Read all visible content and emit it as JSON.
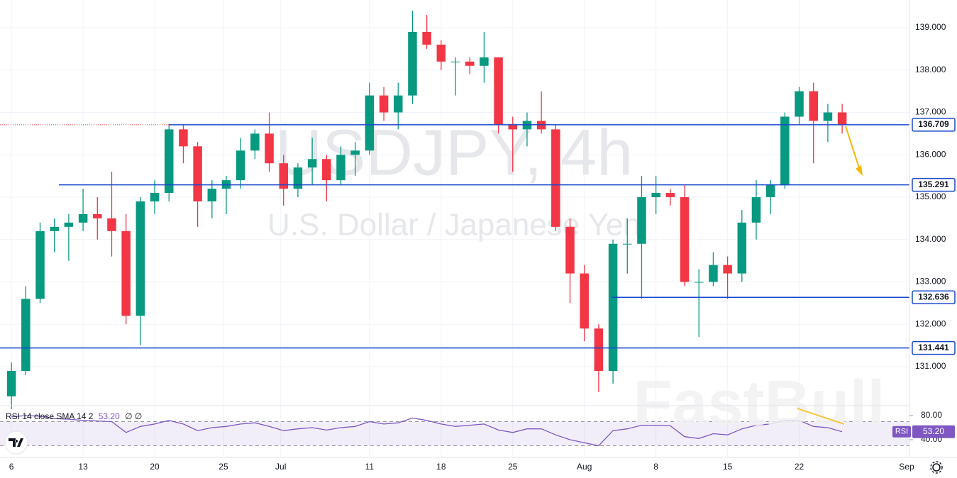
{
  "chart_data": {
    "type": "candlestick",
    "watermark_title": "USDJPY, 4h",
    "watermark_subtitle": "U.S. Dollar / Japanese Yen",
    "watermark_brand": "FastBull",
    "x": [
      0,
      1,
      2,
      3,
      4,
      5,
      6,
      7,
      8,
      9,
      10,
      11,
      12,
      13,
      14,
      15,
      16,
      17,
      18,
      19,
      20,
      21,
      22,
      23,
      24,
      25,
      26,
      27,
      28,
      29,
      30,
      31,
      32,
      33,
      34,
      35,
      36,
      37,
      38,
      39,
      40,
      41,
      42,
      43,
      44,
      45,
      46,
      47,
      48,
      49,
      50,
      51,
      52,
      53,
      54,
      55,
      56,
      57,
      58
    ],
    "open": [
      130.3,
      130.9,
      132.6,
      134.2,
      134.3,
      134.4,
      134.6,
      134.5,
      134.2,
      132.2,
      134.9,
      135.1,
      136.6,
      136.2,
      134.9,
      135.2,
      135.4,
      136.1,
      136.5,
      135.8,
      135.2,
      135.7,
      135.9,
      135.4,
      136.0,
      136.1,
      137.4,
      137.0,
      137.4,
      138.9,
      138.6,
      138.2,
      138.2,
      138.1,
      138.3,
      136.7,
      136.6,
      136.8,
      136.6,
      134.3,
      133.2,
      131.9,
      130.9,
      133.9,
      133.9,
      135.0,
      135.1,
      135.0,
      133.0,
      133.0,
      133.4,
      133.2,
      134.4,
      135.0,
      135.3,
      136.9,
      137.5,
      136.8,
      137.0
    ],
    "high": [
      131.1,
      132.9,
      134.4,
      134.5,
      134.6,
      135.2,
      135.0,
      135.6,
      134.6,
      135.0,
      135.4,
      136.7,
      136.7,
      136.3,
      135.4,
      135.5,
      136.4,
      136.6,
      137.0,
      136.0,
      135.8,
      136.4,
      136.0,
      136.2,
      136.3,
      137.7,
      137.6,
      137.7,
      139.4,
      139.3,
      138.7,
      138.3,
      138.3,
      138.9,
      138.3,
      136.9,
      137.0,
      137.5,
      136.7,
      134.5,
      133.4,
      132.0,
      134.0,
      134.5,
      135.5,
      135.5,
      135.2,
      135.3,
      133.3,
      133.7,
      133.6,
      134.7,
      135.4,
      135.4,
      137.0,
      137.6,
      137.7,
      137.2,
      137.2
    ],
    "low": [
      130.0,
      130.8,
      132.5,
      133.7,
      133.5,
      134.2,
      134.0,
      133.6,
      132.0,
      131.5,
      134.6,
      134.9,
      135.8,
      134.3,
      134.5,
      134.6,
      135.2,
      135.9,
      135.6,
      134.8,
      135.0,
      135.3,
      134.9,
      135.3,
      135.5,
      136.0,
      136.8,
      136.6,
      137.2,
      138.5,
      138.0,
      137.4,
      137.9,
      137.7,
      136.5,
      135.6,
      136.2,
      136.5,
      134.2,
      132.5,
      131.6,
      130.4,
      130.6,
      133.2,
      132.6,
      134.6,
      134.8,
      132.9,
      131.7,
      132.9,
      132.6,
      133.0,
      134.0,
      134.6,
      135.2,
      136.7,
      135.8,
      136.3,
      136.5
    ],
    "close": [
      130.9,
      132.6,
      134.2,
      134.3,
      134.4,
      134.6,
      134.5,
      134.2,
      132.2,
      134.9,
      135.1,
      136.6,
      136.2,
      134.9,
      135.2,
      135.4,
      136.1,
      136.5,
      135.8,
      135.2,
      135.7,
      135.9,
      135.4,
      136.0,
      136.1,
      137.4,
      137.0,
      137.4,
      138.9,
      138.6,
      138.2,
      138.2,
      138.1,
      138.3,
      136.7,
      136.6,
      136.8,
      136.6,
      134.3,
      133.2,
      131.9,
      130.9,
      133.9,
      133.9,
      135.0,
      135.1,
      135.0,
      133.0,
      133.0,
      133.4,
      133.2,
      134.4,
      135.0,
      135.3,
      136.9,
      137.5,
      136.8,
      137.0,
      136.7
    ],
    "up_color": "#089981",
    "down_color": "#f23645",
    "xlim": [
      -0.8,
      62.7
    ],
    "xticks": [
      {
        "value": 0,
        "label": "6"
      },
      {
        "value": 5,
        "label": "13"
      },
      {
        "value": 10,
        "label": "20"
      },
      {
        "value": 14.8,
        "label": "25"
      },
      {
        "value": 18.8,
        "label": "Jul"
      },
      {
        "value": 25,
        "label": "11"
      },
      {
        "value": 30,
        "label": "18"
      },
      {
        "value": 35,
        "label": "25"
      },
      {
        "value": 40,
        "label": "Aug"
      },
      {
        "value": 45,
        "label": "8"
      },
      {
        "value": 50,
        "label": "15"
      },
      {
        "value": 55,
        "label": "22"
      },
      {
        "value": 62.5,
        "label": "Sep"
      }
    ],
    "ylim": [
      130.08,
      139.653
    ],
    "yticks": [
      {
        "value": 131,
        "label": "131.000"
      },
      {
        "value": 132,
        "label": "132.000"
      },
      {
        "value": 133,
        "label": "133.000"
      },
      {
        "value": 134,
        "label": "134.000"
      },
      {
        "value": 135,
        "label": "135.000"
      },
      {
        "value": 136,
        "label": "136.000"
      },
      {
        "value": 137,
        "label": "137.000"
      },
      {
        "value": 138,
        "label": "138.000"
      },
      {
        "value": 139,
        "label": "139.000"
      }
    ],
    "grid": true,
    "levels": [
      136.709,
      135.291,
      132.636,
      131.441
    ],
    "level_color": "#1848cc",
    "rsi": {
      "legend": "RSI 14 close SMA 14 2",
      "last_label": "53.20",
      "extra": "∅ ∅",
      "badge": "RSI",
      "color": "#7e57c2",
      "values": [
        78,
        80,
        79,
        75,
        74,
        72,
        71,
        70,
        52,
        62,
        66,
        72,
        66,
        55,
        60,
        62,
        66,
        68,
        62,
        55,
        58,
        60,
        56,
        60,
        62,
        70,
        66,
        68,
        76,
        72,
        66,
        62,
        64,
        66,
        56,
        52,
        58,
        58,
        48,
        40,
        35,
        30,
        55,
        58,
        64,
        64,
        63,
        45,
        42,
        50,
        48,
        58,
        64,
        66,
        72,
        72,
        62,
        60,
        53.2
      ],
      "ylim": [
        10.6,
        94.1
      ],
      "yticks": [
        {
          "value": 80,
          "label": "80.00"
        },
        {
          "value": 40,
          "label": "40.00"
        }
      ],
      "band": [
        30,
        70
      ]
    }
  }
}
